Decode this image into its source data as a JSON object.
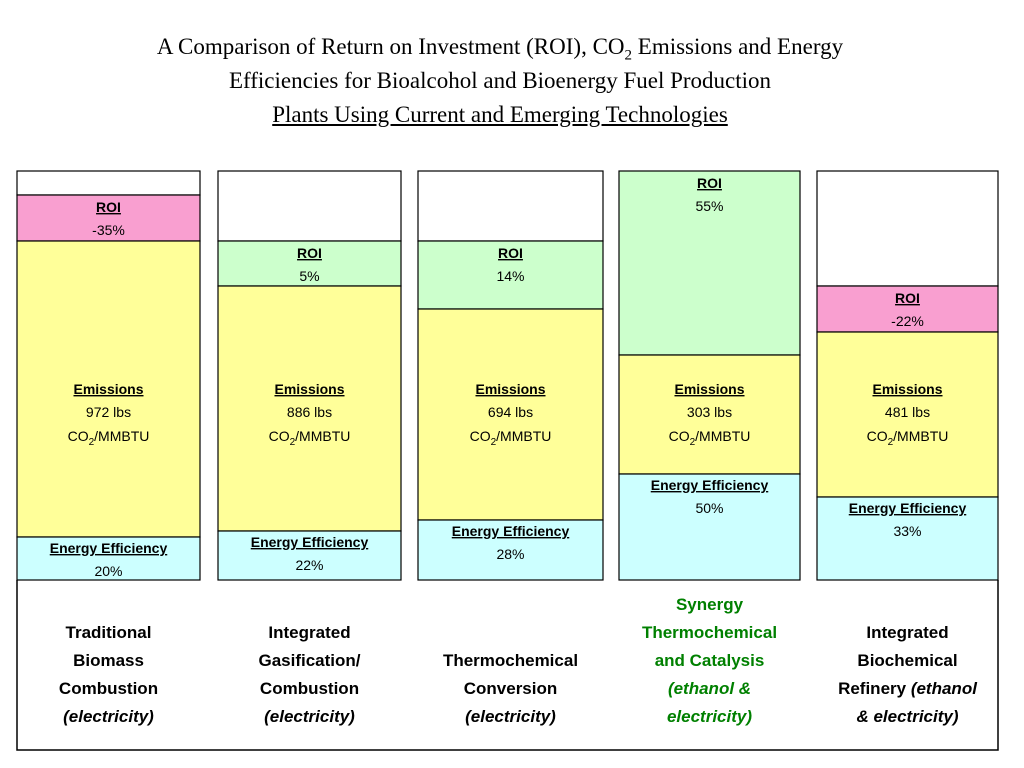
{
  "title": {
    "line1_pre": "A Comparison of Return on Investment (ROI), CO",
    "line1_sub": "2",
    "line1_post": " Emissions and Energy",
    "line2": "Efficiencies for Bioalcohol and Bioenergy Fuel Production",
    "line3": "Plants Using Current and Emerging Technologies"
  },
  "columns": [
    {
      "roi_label": "ROI",
      "roi": "-35%",
      "emissions_label": "Emissions",
      "emissions": "972 lbs",
      "unit": {
        "pre": "CO",
        "sub": "2",
        "post": "/MMBTU"
      },
      "efficiency_label": "Energy Efficiency",
      "efficiency": "20%",
      "name": [
        {
          "roman": "Traditional"
        },
        {
          "roman": "Biomass"
        },
        {
          "roman": "Combustion"
        },
        {
          "italic": "(electricity)"
        }
      ]
    },
    {
      "roi_label": "ROI",
      "roi": "5%",
      "emissions_label": "Emissions",
      "emissions": "886 lbs",
      "unit": {
        "pre": "CO",
        "sub": "2",
        "post": "/MMBTU"
      },
      "efficiency_label": "Energy Efficiency",
      "efficiency": "22%",
      "name": [
        {
          "roman": "Integrated"
        },
        {
          "roman": "Gasification/"
        },
        {
          "roman": "Combustion"
        },
        {
          "italic": "(electricity)"
        }
      ]
    },
    {
      "roi_label": "ROI",
      "roi": "14%",
      "emissions_label": "Emissions",
      "emissions": "694 lbs",
      "unit": {
        "pre": "CO",
        "sub": "2",
        "post": "/MMBTU"
      },
      "efficiency_label": "Energy Efficiency",
      "efficiency": "28%",
      "name": [
        {
          "roman": "Thermochemical"
        },
        {
          "roman": "Conversion"
        },
        {
          "italic": "(electricity)"
        }
      ]
    },
    {
      "roi_label": "ROI",
      "roi": "55%",
      "emissions_label": "Emissions",
      "emissions": "303 lbs",
      "unit": {
        "pre": "CO",
        "sub": "2",
        "post": "/MMBTU"
      },
      "efficiency_label": "Energy Efficiency",
      "efficiency": "50%",
      "name": [
        {
          "roman": "Synergy"
        },
        {
          "roman": "Thermochemical"
        },
        {
          "roman": "and Catalysis"
        },
        {
          "italic": "(ethanol &"
        },
        {
          "italic": "electricity)"
        }
      ]
    },
    {
      "roi_label": "ROI",
      "roi": "-22%",
      "emissions_label": "Emissions",
      "emissions": "481 lbs",
      "unit": {
        "pre": "CO",
        "sub": "2",
        "post": "/MMBTU"
      },
      "efficiency_label": "Energy Efficiency",
      "efficiency": "33%",
      "name": [
        {
          "roman": "Integrated"
        },
        {
          "roman": "Biochemical"
        },
        {
          "roman": "Refinery ",
          "italic": "(ethanol"
        },
        {
          "italic": "& electricity)"
        }
      ]
    }
  ]
}
